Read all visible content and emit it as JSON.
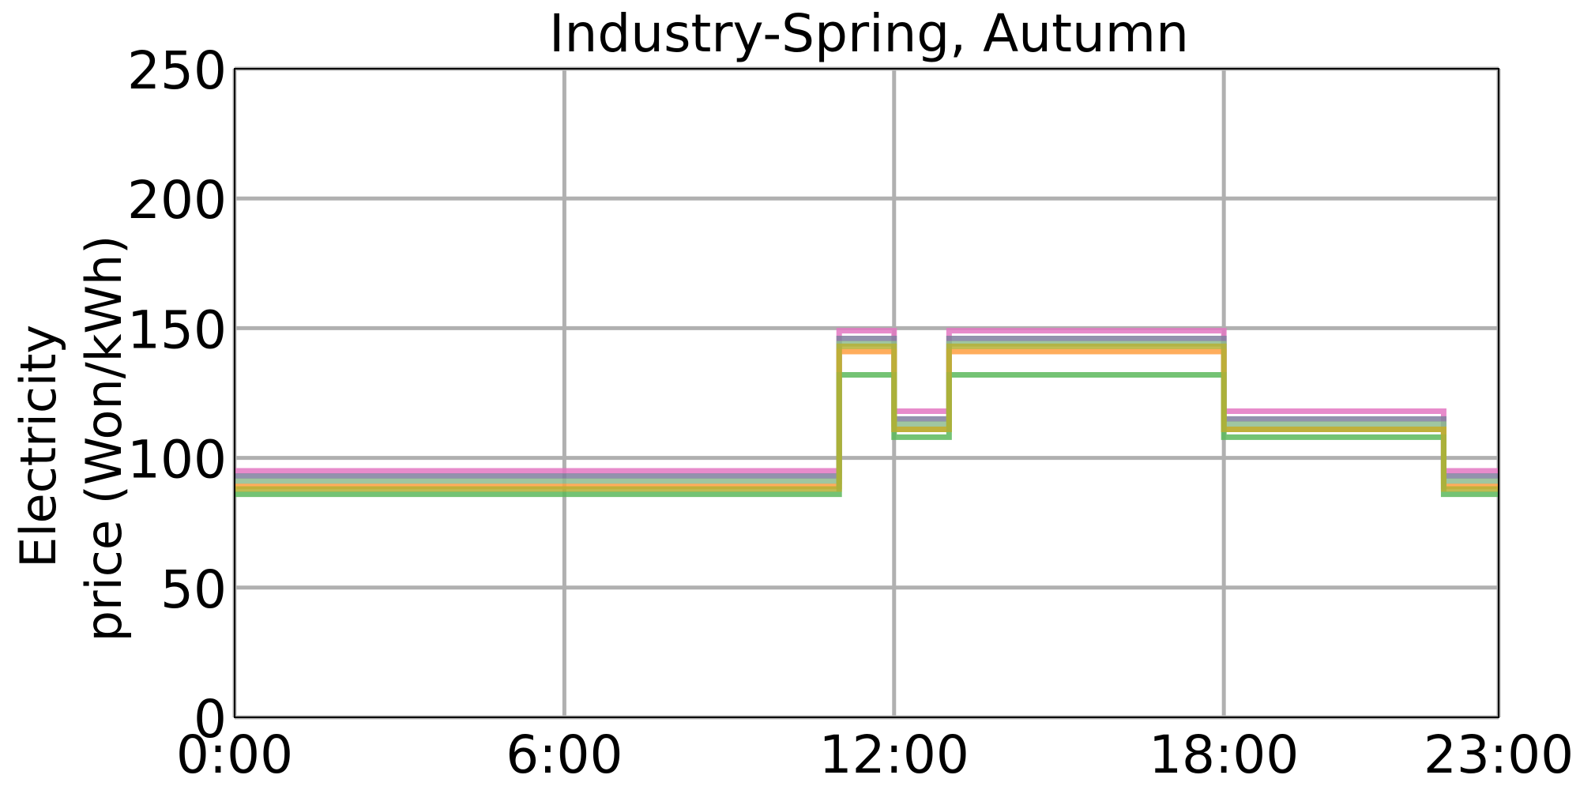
{
  "chart_data": {
    "type": "line",
    "step": true,
    "title": "Industry-Spring, Autumn",
    "ylabel_lines": [
      "Electricity",
      "price (Won/kWh)"
    ],
    "xlabel": "",
    "xlim": [
      0,
      23
    ],
    "ylim": [
      0,
      250
    ],
    "xticks": [
      {
        "value": 0,
        "label": "0:00"
      },
      {
        "value": 6,
        "label": "6:00"
      },
      {
        "value": 12,
        "label": "12:00"
      },
      {
        "value": 18,
        "label": "18:00"
      },
      {
        "value": 23,
        "label": "23:00"
      }
    ],
    "yticks": [
      {
        "value": 0,
        "label": "0"
      },
      {
        "value": 50,
        "label": "50"
      },
      {
        "value": 100,
        "label": "100"
      },
      {
        "value": 150,
        "label": "150"
      },
      {
        "value": 200,
        "label": "200"
      },
      {
        "value": 250,
        "label": "250"
      }
    ],
    "grid": true,
    "x_breaks": [
      0,
      11,
      12,
      13,
      18,
      22,
      23
    ],
    "series": [
      {
        "color": "#e377c2",
        "values": [
          95,
          149,
          118,
          149,
          118,
          95
        ]
      },
      {
        "color": "#7f7f9f",
        "values": [
          93,
          146,
          115,
          146,
          115,
          93
        ]
      },
      {
        "color": "#8fbc8f",
        "values": [
          91,
          144,
          113,
          144,
          113,
          91
        ]
      },
      {
        "color": "#ff9f40",
        "values": [
          89,
          141,
          111,
          141,
          111,
          89
        ]
      },
      {
        "color": "#5cb85c",
        "values": [
          86,
          132,
          108,
          132,
          108,
          86
        ]
      },
      {
        "color": "#b5b035",
        "values": [
          88,
          143,
          111,
          143,
          111,
          88
        ]
      }
    ]
  }
}
